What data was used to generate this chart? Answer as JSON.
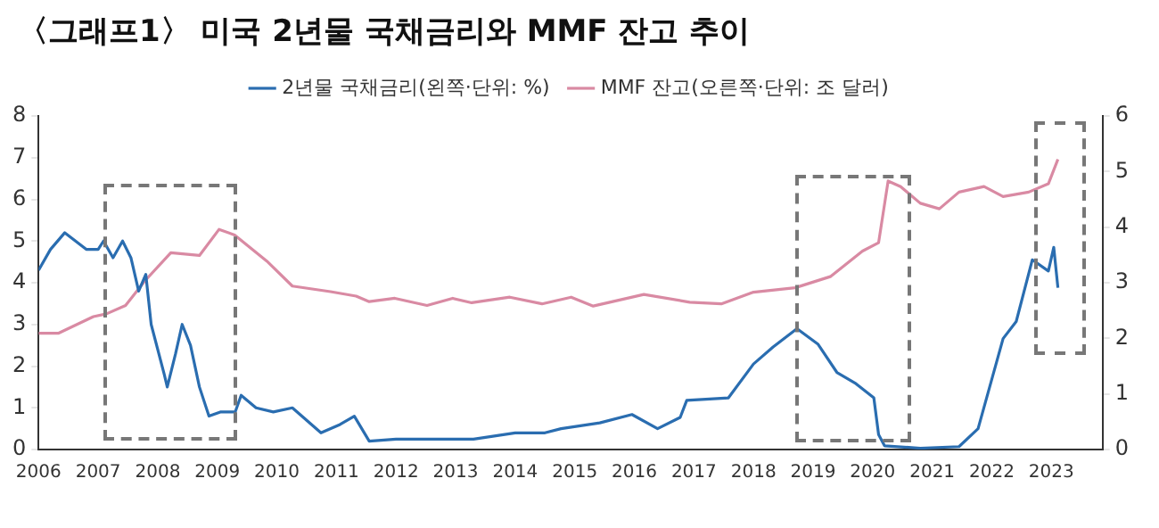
{
  "chart_data": {
    "type": "line",
    "title": "〈그래프1〉 미국 2년물 국채금리와 MMF 잔고 추이",
    "xlim": [
      2006,
      2023.86
    ],
    "xticks": [
      2006,
      2007,
      2008,
      2009,
      2010,
      2011,
      2012,
      2013,
      2014,
      2015,
      2016,
      2017,
      2018,
      2019,
      2020,
      2021,
      2022,
      2023
    ],
    "ylim": [
      0,
      8
    ],
    "yticks": [
      0,
      1,
      2,
      3,
      4,
      5,
      6,
      7,
      8
    ],
    "y2lim": [
      0,
      6
    ],
    "y2ticks": [
      0,
      1,
      2,
      3,
      4,
      5,
      6
    ],
    "grid": false,
    "legend": "top",
    "marker": "none",
    "line_style": "solid",
    "series": [
      {
        "name": "2년물 국채금리(왼쪽·단위: %)",
        "color": "#2a6db0",
        "x": [
          2006.0,
          2006.2,
          2006.44,
          2006.8,
          2007.0,
          2007.09,
          2007.25,
          2007.41,
          2007.55,
          2007.68,
          2007.8,
          2007.89,
          2008.11,
          2008.16,
          2008.3,
          2008.41,
          2008.55,
          2008.7,
          2008.86,
          2009.05,
          2009.3,
          2009.4,
          2009.65,
          2009.94,
          2010.26,
          2010.5,
          2010.74,
          2011.06,
          2011.3,
          2011.55,
          2012.0,
          2012.5,
          2013.0,
          2013.3,
          2014.0,
          2014.5,
          2014.77,
          2015.42,
          2015.96,
          2016.39,
          2016.77,
          2016.88,
          2017.58,
          2018.0,
          2018.33,
          2018.73,
          2019.08,
          2019.4,
          2019.72,
          2020.02,
          2020.1,
          2020.2,
          2020.8,
          2021.45,
          2021.77,
          2022.19,
          2022.41,
          2022.68,
          2022.95,
          2023.04,
          2023.11
        ],
        "values": [
          4.3,
          4.8,
          5.2,
          4.8,
          4.8,
          5.0,
          4.6,
          5.0,
          4.6,
          3.8,
          4.2,
          3.0,
          1.8,
          1.5,
          2.3,
          3.0,
          2.5,
          1.5,
          0.8,
          0.9,
          0.9,
          1.3,
          1.0,
          0.9,
          1.0,
          0.7,
          0.4,
          0.6,
          0.8,
          0.2,
          0.25,
          0.25,
          0.25,
          0.25,
          0.4,
          0.4,
          0.5,
          0.64,
          0.84,
          0.5,
          0.77,
          1.18,
          1.24,
          2.05,
          2.46,
          2.9,
          2.53,
          1.85,
          1.58,
          1.24,
          0.36,
          0.09,
          0.03,
          0.07,
          0.5,
          2.66,
          3.07,
          4.55,
          4.28,
          4.85,
          3.88
        ]
      },
      {
        "name": "MMF 잔고(오른쪽·단위: 조 달러)",
        "color": "#d98aa3",
        "axis": "y2",
        "x": [
          2006.0,
          2006.33,
          2006.92,
          2007.14,
          2007.46,
          2007.79,
          2008.22,
          2008.7,
          2009.03,
          2009.29,
          2009.83,
          2010.26,
          2010.9,
          2011.33,
          2011.55,
          2011.98,
          2012.52,
          2012.95,
          2013.27,
          2013.91,
          2014.45,
          2014.94,
          2015.31,
          2016.16,
          2016.93,
          2017.46,
          2018.0,
          2018.7,
          2019.29,
          2019.83,
          2020.1,
          2020.26,
          2020.47,
          2020.8,
          2021.12,
          2021.45,
          2021.87,
          2022.19,
          2022.62,
          2022.95,
          2023.11
        ],
        "values": [
          2.09,
          2.09,
          2.39,
          2.44,
          2.59,
          3.04,
          3.54,
          3.49,
          3.96,
          3.86,
          3.39,
          2.94,
          2.84,
          2.76,
          2.66,
          2.72,
          2.59,
          2.72,
          2.64,
          2.74,
          2.62,
          2.74,
          2.58,
          2.79,
          2.65,
          2.62,
          2.83,
          2.91,
          3.11,
          3.57,
          3.72,
          4.83,
          4.73,
          4.43,
          4.33,
          4.63,
          4.73,
          4.55,
          4.63,
          4.78,
          5.22
        ]
      }
    ]
  }
}
